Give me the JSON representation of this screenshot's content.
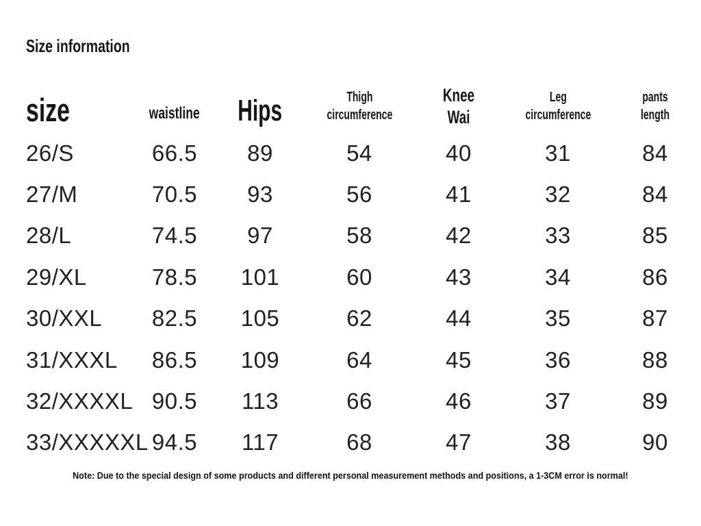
{
  "page": {
    "title": "Size information",
    "note": "Note: Due to the special design of some products and different personal measurement methods and positions, a 1-3CM error is normal!"
  },
  "colors": {
    "background": "#ffffff",
    "text": "#1a1a1a"
  },
  "table": {
    "headers": [
      "size",
      "waistline",
      "Hips",
      "Thigh\ncircumference",
      "Knee\nWai",
      "Leg\ncircumference",
      "pants\nlength"
    ],
    "rows": [
      [
        "26/S",
        "66.5",
        "89",
        "54",
        "40",
        "31",
        "84"
      ],
      [
        "27/M",
        "70.5",
        "93",
        "56",
        "41",
        "32",
        "84"
      ],
      [
        "28/L",
        "74.5",
        "97",
        "58",
        "42",
        "33",
        "85"
      ],
      [
        "29/XL",
        "78.5",
        "101",
        "60",
        "43",
        "34",
        "86"
      ],
      [
        "30/XXL",
        "82.5",
        "105",
        "62",
        "44",
        "35",
        "87"
      ],
      [
        "31/XXXL",
        "86.5",
        "109",
        "64",
        "45",
        "36",
        "88"
      ],
      [
        "32/XXXXL",
        "90.5",
        "113",
        "66",
        "46",
        "37",
        "89"
      ],
      [
        "33/XXXXXL",
        "94.5",
        "117",
        "68",
        "47",
        "38",
        "90"
      ]
    ]
  }
}
